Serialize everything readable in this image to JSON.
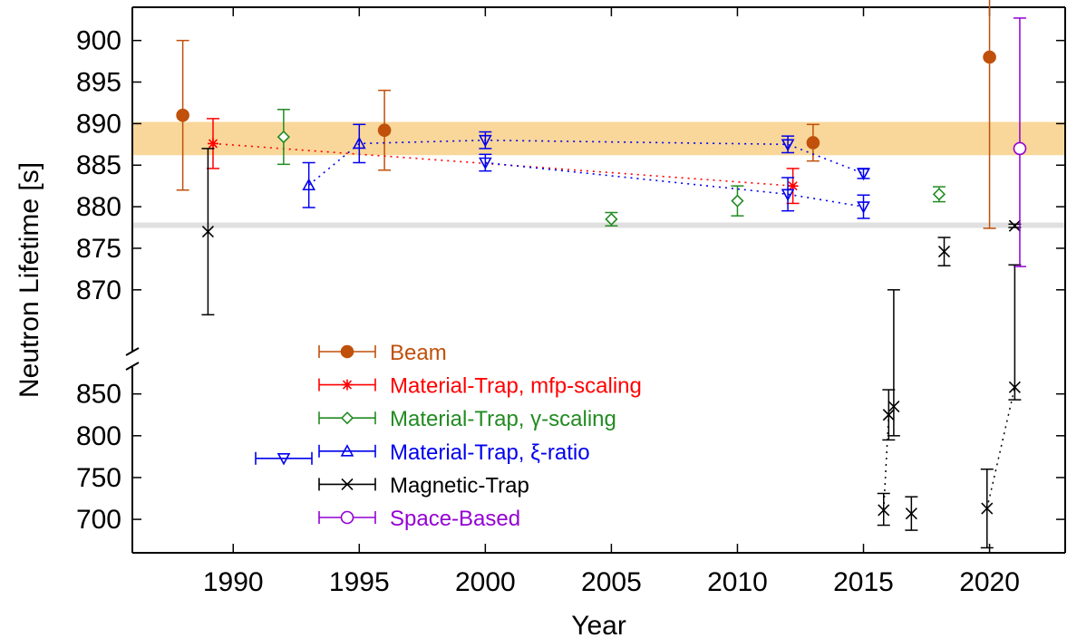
{
  "chart_data": {
    "type": "scatter",
    "xlabel": "Year",
    "ylabel": "Neutron Lifetime [s]",
    "xlim": [
      1986,
      2023
    ],
    "x_ticks": [
      1990,
      1995,
      2000,
      2005,
      2010,
      2015,
      2020
    ],
    "y_axis_broken": true,
    "upper_panel": {
      "ylim": [
        863,
        904
      ],
      "ticks": [
        870,
        875,
        880,
        885,
        890,
        895,
        900
      ]
    },
    "lower_panel": {
      "ylim": [
        660,
        880
      ],
      "ticks": [
        700,
        750,
        800,
        850
      ]
    },
    "bands": [
      {
        "y_low": 886.2,
        "y_high": 890.2,
        "color": "#f9d79a"
      },
      {
        "y_low": 877.5,
        "y_high": 878.1,
        "color": "#e0e0e0"
      }
    ],
    "legend_position": "bottom-left",
    "series": [
      {
        "name": "Beam",
        "color": "#c0500a",
        "marker": "filled-circle",
        "points": [
          {
            "x": 1988,
            "y": 891.0,
            "err_low": 9.0,
            "err_high": 9.0
          },
          {
            "x": 1996,
            "y": 889.2,
            "err_low": 4.8,
            "err_high": 4.8
          },
          {
            "x": 2013,
            "y": 887.7,
            "err_low": 2.2,
            "err_high": 2.2
          },
          {
            "x": 2020,
            "y": 898.0,
            "err_low": 20.6,
            "err_high": 20.6
          }
        ]
      },
      {
        "name": "Material-Trap, mfp-scaling",
        "color": "#ff0000",
        "marker": "star",
        "connected": true,
        "points": [
          {
            "x": 1989.2,
            "y": 887.6,
            "err_low": 3.0,
            "err_high": 3.0
          },
          {
            "x": 2012.2,
            "y": 882.5,
            "err_low": 2.1,
            "err_high": 2.1
          }
        ]
      },
      {
        "name": "Material-Trap, γ-scaling",
        "color": "#228b22",
        "marker": "diamond",
        "points": [
          {
            "x": 1992,
            "y": 888.4,
            "err_low": 3.3,
            "err_high": 3.3
          },
          {
            "x": 2005,
            "y": 878.5,
            "err_low": 0.8,
            "err_high": 0.8
          },
          {
            "x": 2010,
            "y": 880.7,
            "err_low": 1.8,
            "err_high": 1.8
          },
          {
            "x": 2018,
            "y": 881.5,
            "err_low": 0.9,
            "err_high": 0.9
          }
        ]
      },
      {
        "name": "Material-Trap, ξ-ratio",
        "color": "#0000ee",
        "marker": "triangle",
        "connected_groups": [
          [
            {
              "x": 1993,
              "y": 882.6,
              "err_low": 2.7,
              "err_high": 2.7,
              "dir": "up"
            },
            {
              "x": 1995,
              "y": 887.6,
              "err_low": 2.3,
              "err_high": 2.3,
              "dir": "up"
            },
            {
              "x": 2000,
              "y": 888.0,
              "err_low": 1.0,
              "err_high": 1.0,
              "dir": "down"
            },
            {
              "x": 2012,
              "y": 887.5,
              "err_low": 1.0,
              "err_high": 1.0,
              "dir": "down"
            },
            {
              "x": 2015,
              "y": 884.0,
              "err_low": 0.6,
              "err_high": 0.6,
              "dir": "down"
            }
          ],
          [
            {
              "x": 2000,
              "y": 885.3,
              "err_low": 1.0,
              "err_high": 1.0,
              "dir": "down"
            },
            {
              "x": 2012,
              "y": 881.5,
              "err_low": 2.0,
              "err_high": 2.0,
              "dir": "down"
            },
            {
              "x": 2015,
              "y": 880.0,
              "err_low": 1.4,
              "err_high": 1.4,
              "dir": "down"
            }
          ]
        ]
      },
      {
        "name": "Magnetic-Trap",
        "color": "#000000",
        "marker": "cross",
        "points": [
          {
            "x": 1989,
            "y": 877.0,
            "err_low": 10.0,
            "err_high": 10.0
          },
          {
            "x": 2018.2,
            "y": 874.6,
            "err_low": 1.7,
            "err_high": 1.7
          },
          {
            "x": 2021,
            "y": 877.7,
            "err_low": 0.2,
            "err_high": 0.2
          },
          {
            "x": 2015.8,
            "y": 711,
            "err_low": 18,
            "err_high": 20
          },
          {
            "x": 2016.0,
            "y": 825,
            "err_low": 30,
            "err_high": 30
          },
          {
            "x": 2016.2,
            "y": 835,
            "err_low": 35,
            "err_high": 35
          },
          {
            "x": 2016.9,
            "y": 707,
            "err_low": 20,
            "err_high": 20
          },
          {
            "x": 2019.9,
            "y": 713,
            "err_low": 47,
            "err_high": 47
          },
          {
            "x": 2021.0,
            "y": 858,
            "err_low": 15,
            "err_high": 15
          }
        ],
        "dotted_links": [
          [
            {
              "x": 2015.8,
              "y": 711
            },
            {
              "x": 2016.0,
              "y": 825
            }
          ],
          [
            {
              "x": 2019.9,
              "y": 713
            },
            {
              "x": 2021.0,
              "y": 858
            }
          ]
        ]
      },
      {
        "name": "Space-Based",
        "color": "#9400d3",
        "marker": "open-circle",
        "points": [
          {
            "x": 2021.2,
            "y": 887.0,
            "err_low": 14.2,
            "err_high": 15.7
          }
        ]
      }
    ]
  }
}
